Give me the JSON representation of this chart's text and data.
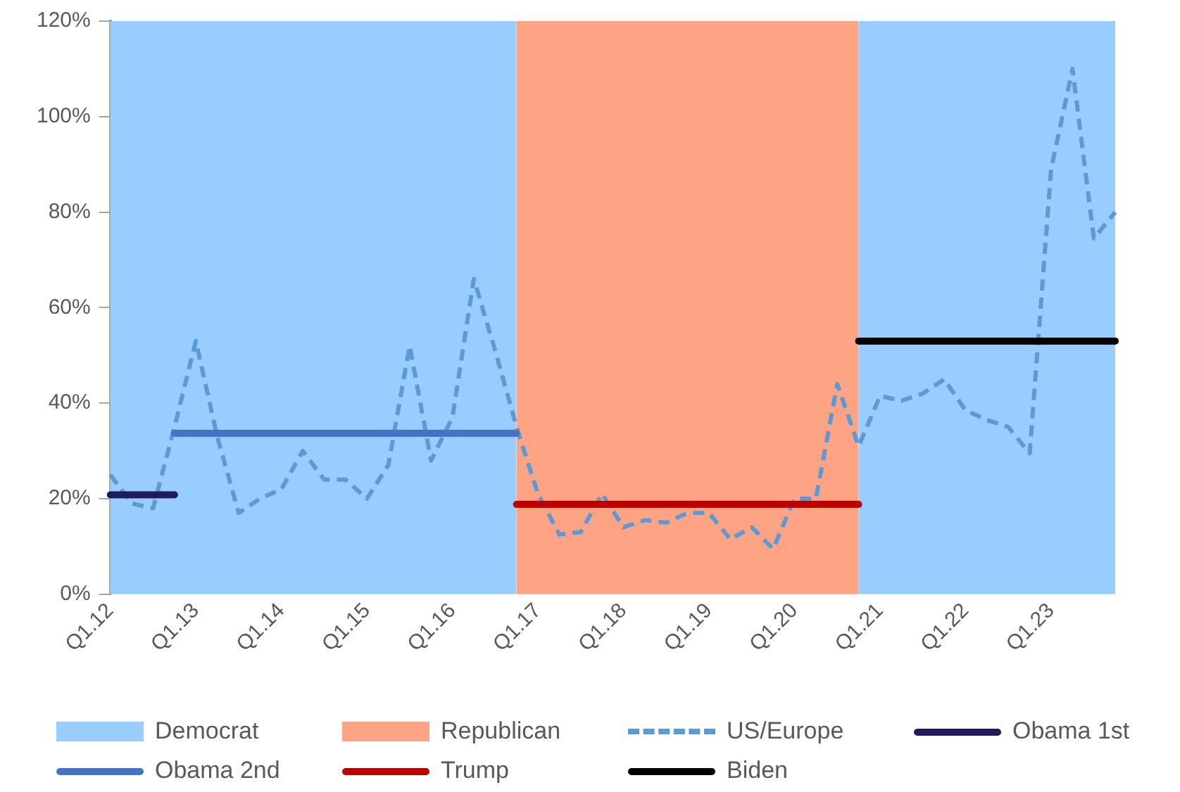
{
  "chart_data": {
    "type": "line",
    "categories": [
      "Q1.12",
      null,
      null,
      null,
      "Q1.13",
      null,
      null,
      null,
      "Q1.14",
      null,
      null,
      null,
      "Q1.15",
      null,
      null,
      null,
      "Q1.16",
      null,
      null,
      null,
      "Q1.17",
      null,
      null,
      null,
      "Q1.18",
      null,
      null,
      null,
      "Q1.19",
      null,
      null,
      null,
      "Q1.20",
      null,
      null,
      null,
      "Q1.21",
      null,
      null,
      null,
      "Q1.22",
      null,
      null,
      null,
      "Q1.23",
      null,
      null,
      null
    ],
    "ylim": [
      0,
      120
    ],
    "yticks": [
      {
        "value": 0,
        "label": "0%"
      },
      {
        "value": 20,
        "label": "20%"
      },
      {
        "value": 40,
        "label": "40%"
      },
      {
        "value": 60,
        "label": "60%"
      },
      {
        "value": 80,
        "label": "80%"
      },
      {
        "value": 100,
        "label": "100%"
      },
      {
        "value": 120,
        "label": "120%"
      }
    ],
    "series": [
      {
        "name": "Democrat",
        "type": "area",
        "color": "#99ccff",
        "values": [
          120,
          120,
          120,
          120,
          120,
          120,
          120,
          120,
          120,
          120,
          120,
          120,
          120,
          120,
          120,
          120,
          120,
          120,
          120,
          120,
          null,
          null,
          null,
          null,
          null,
          null,
          null,
          null,
          null,
          null,
          null,
          null,
          null,
          null,
          null,
          120,
          120,
          120,
          120,
          120,
          120,
          120,
          120,
          120,
          120,
          120,
          120,
          120
        ]
      },
      {
        "name": "Republican",
        "type": "area",
        "color": "#ffa385",
        "values": [
          null,
          null,
          null,
          null,
          null,
          null,
          null,
          null,
          null,
          null,
          null,
          null,
          null,
          null,
          null,
          null,
          null,
          null,
          null,
          120,
          120,
          120,
          120,
          120,
          120,
          120,
          120,
          120,
          120,
          120,
          120,
          120,
          120,
          120,
          120,
          120,
          null,
          null,
          null,
          null,
          null,
          null,
          null,
          null,
          null,
          null,
          null,
          null
        ]
      },
      {
        "name": "US/Europe",
        "color": "#5b9bd5",
        "line_style": "dashed",
        "values": [
          25,
          19,
          18,
          35,
          53,
          33,
          17,
          20,
          22,
          30,
          24,
          24,
          20,
          27,
          52,
          28,
          37,
          66,
          51,
          35,
          21,
          12.5,
          13,
          21,
          14,
          15.5,
          15,
          17,
          17,
          11.5,
          14,
          9.5,
          20,
          20,
          44,
          31,
          41.5,
          40.5,
          42,
          45,
          38.5,
          36.5,
          35,
          29.5,
          89,
          110,
          74.5,
          80
        ]
      },
      {
        "name": "Obama 1st",
        "color": "#1f1a5a",
        "values": [
          20.8,
          20.8,
          20.8,
          20.8,
          null,
          null,
          null,
          null,
          null,
          null,
          null,
          null,
          null,
          null,
          null,
          null,
          null,
          null,
          null,
          null,
          null,
          null,
          null,
          null,
          null,
          null,
          null,
          null,
          null,
          null,
          null,
          null,
          null,
          null,
          null,
          null,
          null,
          null,
          null,
          null,
          null,
          null,
          null,
          null,
          null,
          null,
          null,
          null
        ]
      },
      {
        "name": "Obama 2nd",
        "color": "#4472c4",
        "values": [
          null,
          null,
          null,
          33.7,
          33.7,
          33.7,
          33.7,
          33.7,
          33.7,
          33.7,
          33.7,
          33.7,
          33.7,
          33.7,
          33.7,
          33.7,
          33.7,
          33.7,
          33.7,
          33.7,
          null,
          null,
          null,
          null,
          null,
          null,
          null,
          null,
          null,
          null,
          null,
          null,
          null,
          null,
          null,
          null,
          null,
          null,
          null,
          null,
          null,
          null,
          null,
          null,
          null,
          null,
          null,
          null
        ]
      },
      {
        "name": "Trump",
        "color": "#c00000",
        "values": [
          null,
          null,
          null,
          null,
          null,
          null,
          null,
          null,
          null,
          null,
          null,
          null,
          null,
          null,
          null,
          null,
          null,
          null,
          null,
          18.8,
          18.8,
          18.8,
          18.8,
          18.8,
          18.8,
          18.8,
          18.8,
          18.8,
          18.8,
          18.8,
          18.8,
          18.8,
          18.8,
          18.8,
          18.8,
          18.8,
          null,
          null,
          null,
          null,
          null,
          null,
          null,
          null,
          null,
          null,
          null,
          null
        ]
      },
      {
        "name": "Biden",
        "color": "#000000",
        "values": [
          null,
          null,
          null,
          null,
          null,
          null,
          null,
          null,
          null,
          null,
          null,
          null,
          null,
          null,
          null,
          null,
          null,
          null,
          null,
          null,
          null,
          null,
          null,
          null,
          null,
          null,
          null,
          null,
          null,
          null,
          null,
          null,
          null,
          null,
          null,
          53,
          53,
          53,
          53,
          53,
          53,
          53,
          53,
          53,
          53,
          53,
          53,
          53
        ]
      }
    ],
    "line_style": "solid",
    "marker": "none",
    "grid": false,
    "legend": "bottom"
  }
}
